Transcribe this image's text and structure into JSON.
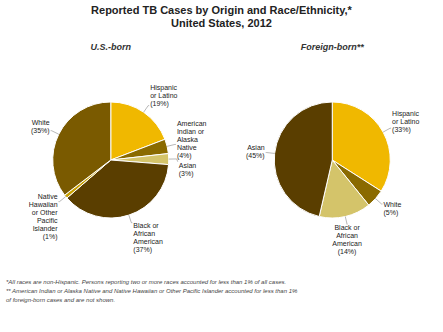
{
  "chart_data": [
    {
      "type": "pie",
      "title": "Reported TB Cases by Origin and Race/Ethnicity,*\nUnited States, 2012",
      "subtitle": "U.S.-born",
      "categories": [
        "Hispanic\nor Latino",
        "American\nIndian or\nAlaska\nNative",
        "Asian",
        "Black or\nAfrican\nAmerican",
        "Native\nHawaiian\nor Other\nPacific\nIslander",
        "White"
      ],
      "values": [
        19,
        4,
        3,
        37,
        1,
        35
      ],
      "value_labels": [
        "(19%)",
        "(4%)",
        "(3%)",
        "(37%)",
        "(1%)",
        "(35%)"
      ],
      "colors": [
        "#f0b800",
        "#8a6a00",
        "#d4c46a",
        "#5a3e00",
        "#c8a000",
        "#7a5a00"
      ],
      "data_labels": true,
      "annotations": [
        "*All races are non-Hispanic. Persons reporting two or more races accounted for less than 1% of all cases."
      ]
    },
    {
      "type": "pie",
      "subtitle": "Foreign-born**",
      "categories": [
        "Hispanic\nor Latino",
        "White",
        "Black or\nAfrican\nAmerican",
        "Asian"
      ],
      "values": [
        33,
        5,
        14,
        45
      ],
      "value_labels": [
        "(33%)",
        "(5%)",
        "(14%)",
        "(45%)"
      ],
      "colors": [
        "#f0b800",
        "#8a6a00",
        "#d4c46a",
        "#5a3e00"
      ],
      "data_labels": true,
      "annotations": [
        "** American Indian or Alaska Native and Native Hawaiian or Other Pacific Islander accounted for less than 1%",
        "of foreign-born cases and are not shown."
      ]
    }
  ]
}
